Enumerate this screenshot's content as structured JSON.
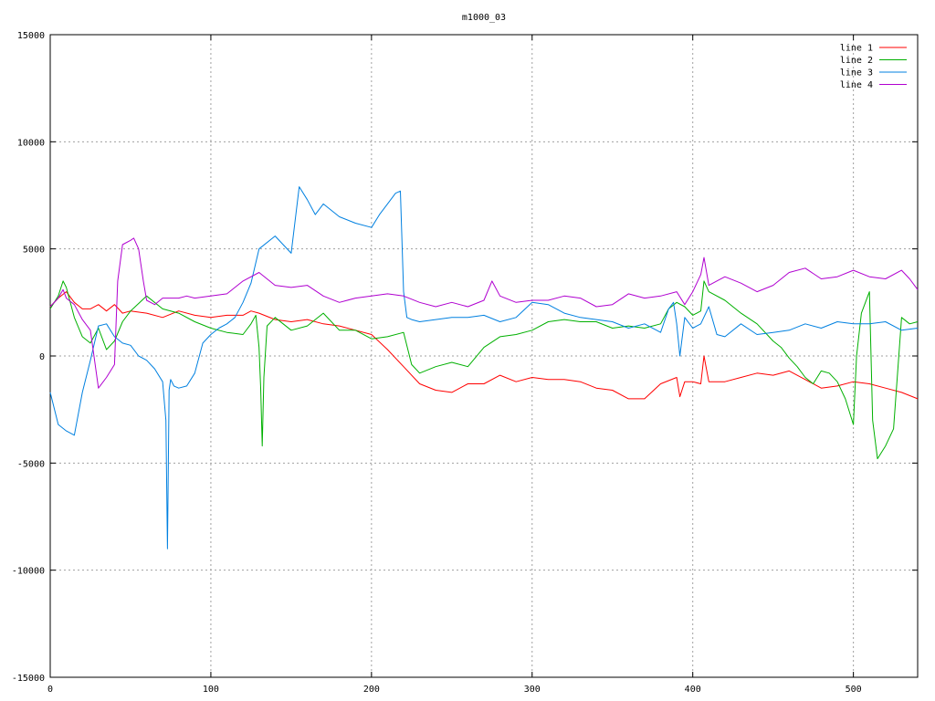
{
  "chart_data": {
    "type": "line",
    "title": "m1000_03",
    "xlabel": "",
    "ylabel": "",
    "xlim": [
      0,
      540
    ],
    "ylim": [
      -15000,
      15000
    ],
    "x_ticks": [
      0,
      100,
      200,
      300,
      400,
      500
    ],
    "y_ticks": [
      -15000,
      -10000,
      -5000,
      0,
      5000,
      10000,
      15000
    ],
    "x_tick_labels": [
      "0",
      "100",
      "200",
      "300",
      "400",
      "500"
    ],
    "y_tick_labels": [
      "-15000",
      "-10000",
      "-5000",
      "0",
      "5000",
      "10000",
      "15000"
    ],
    "grid": true,
    "legend_position": "top-right",
    "series": [
      {
        "name": "line 1",
        "color": "#ff0000",
        "x": [
          0,
          5,
          10,
          15,
          20,
          25,
          30,
          35,
          40,
          45,
          50,
          60,
          70,
          80,
          90,
          100,
          110,
          120,
          125,
          130,
          140,
          150,
          160,
          170,
          180,
          190,
          200,
          210,
          220,
          230,
          240,
          250,
          260,
          270,
          280,
          290,
          300,
          310,
          320,
          330,
          340,
          350,
          360,
          370,
          380,
          390,
          392,
          395,
          400,
          405,
          407,
          410,
          420,
          430,
          440,
          450,
          460,
          470,
          480,
          490,
          500,
          510,
          520,
          530,
          540
        ],
        "y": [
          2300,
          2700,
          3000,
          2500,
          2200,
          2200,
          2400,
          2100,
          2400,
          2000,
          2100,
          2000,
          1800,
          2100,
          1900,
          1800,
          1900,
          1900,
          2100,
          2000,
          1700,
          1600,
          1700,
          1500,
          1400,
          1200,
          1000,
          300,
          -500,
          -1300,
          -1600,
          -1700,
          -1300,
          -1300,
          -900,
          -1200,
          -1000,
          -1100,
          -1100,
          -1200,
          -1500,
          -1600,
          -2000,
          -2000,
          -1300,
          -1000,
          -1900,
          -1200,
          -1200,
          -1300,
          0,
          -1200,
          -1200,
          -1000,
          -800,
          -900,
          -700,
          -1100,
          -1500,
          -1400,
          -1200,
          -1300,
          -1500,
          -1700,
          -2000
        ]
      },
      {
        "name": "line 2",
        "color": "#00b000",
        "x": [
          0,
          5,
          8,
          10,
          15,
          20,
          25,
          30,
          35,
          40,
          45,
          50,
          60,
          70,
          80,
          90,
          100,
          110,
          120,
          125,
          128,
          130,
          131,
          132,
          133,
          135,
          140,
          150,
          160,
          170,
          180,
          190,
          200,
          210,
          220,
          225,
          230,
          240,
          250,
          260,
          270,
          280,
          290,
          300,
          310,
          320,
          330,
          340,
          350,
          360,
          370,
          380,
          385,
          390,
          395,
          400,
          405,
          407,
          410,
          420,
          430,
          440,
          450,
          455,
          460,
          465,
          470,
          475,
          480,
          485,
          490,
          495,
          500,
          502,
          505,
          510,
          512,
          515,
          520,
          525,
          530,
          535,
          540
        ],
        "y": [
          2200,
          2800,
          3500,
          3200,
          1800,
          900,
          600,
          1300,
          300,
          700,
          1600,
          2100,
          2800,
          2200,
          2000,
          1600,
          1300,
          1100,
          1000,
          1500,
          1900,
          400,
          -1500,
          -4200,
          -1000,
          1400,
          1800,
          1200,
          1400,
          2000,
          1200,
          1200,
          800,
          900,
          1100,
          -400,
          -800,
          -500,
          -300,
          -500,
          400,
          900,
          1000,
          1200,
          1600,
          1700,
          1600,
          1600,
          1300,
          1400,
          1300,
          1500,
          2200,
          2500,
          2300,
          1900,
          2100,
          3500,
          3000,
          2600,
          2000,
          1500,
          700,
          400,
          -100,
          -500,
          -1000,
          -1300,
          -700,
          -800,
          -1200,
          -2000,
          -3200,
          0,
          2000,
          3000,
          -3000,
          -4800,
          -4200,
          -3400,
          1800,
          1500,
          1600
        ]
      },
      {
        "name": "line 3",
        "color": "#0080e0",
        "x": [
          0,
          5,
          10,
          15,
          20,
          25,
          30,
          35,
          40,
          45,
          50,
          55,
          60,
          65,
          70,
          72,
          73,
          74,
          75,
          77,
          80,
          85,
          90,
          95,
          100,
          105,
          110,
          115,
          120,
          125,
          130,
          140,
          150,
          155,
          160,
          165,
          170,
          180,
          190,
          200,
          205,
          210,
          215,
          218,
          220,
          222,
          225,
          230,
          240,
          250,
          260,
          270,
          280,
          290,
          300,
          310,
          320,
          330,
          340,
          350,
          360,
          370,
          380,
          385,
          388,
          390,
          392,
          395,
          400,
          405,
          410,
          415,
          420,
          430,
          440,
          450,
          460,
          470,
          480,
          490,
          500,
          510,
          520,
          530,
          540
        ],
        "y": [
          -1700,
          -3200,
          -3500,
          -3700,
          -1700,
          -200,
          1400,
          1500,
          900,
          600,
          500,
          0,
          -200,
          -600,
          -1200,
          -3000,
          -9000,
          -1600,
          -1100,
          -1400,
          -1500,
          -1400,
          -800,
          600,
          1000,
          1300,
          1500,
          1800,
          2500,
          3400,
          5000,
          5600,
          4800,
          7900,
          7300,
          6600,
          7100,
          6500,
          6200,
          6000,
          6600,
          7100,
          7600,
          7700,
          3000,
          1800,
          1700,
          1600,
          1700,
          1800,
          1800,
          1900,
          1600,
          1800,
          2500,
          2400,
          2000,
          1800,
          1700,
          1600,
          1300,
          1500,
          1100,
          2200,
          2500,
          1500,
          0,
          1800,
          1300,
          1500,
          2300,
          1000,
          900,
          1500,
          1000,
          1100,
          1200,
          1500,
          1300,
          1600,
          1500,
          1500,
          1600,
          1200,
          1300
        ]
      },
      {
        "name": "line 4",
        "color": "#b000d0",
        "x": [
          0,
          5,
          8,
          10,
          15,
          20,
          25,
          30,
          35,
          40,
          42,
          45,
          50,
          52,
          55,
          58,
          60,
          65,
          70,
          75,
          80,
          85,
          90,
          100,
          110,
          120,
          130,
          140,
          150,
          160,
          170,
          180,
          190,
          200,
          210,
          220,
          230,
          240,
          250,
          260,
          270,
          275,
          280,
          290,
          300,
          310,
          320,
          330,
          340,
          350,
          360,
          370,
          380,
          390,
          395,
          400,
          405,
          407,
          410,
          420,
          430,
          440,
          450,
          460,
          470,
          480,
          490,
          500,
          510,
          520,
          530,
          535,
          540
        ],
        "y": [
          2300,
          2700,
          3100,
          2700,
          2400,
          1700,
          1200,
          -1500,
          -1000,
          -400,
          3500,
          5200,
          5400,
          5500,
          5000,
          3500,
          2600,
          2400,
          2700,
          2700,
          2700,
          2800,
          2700,
          2800,
          2900,
          3500,
          3900,
          3300,
          3200,
          3300,
          2800,
          2500,
          2700,
          2800,
          2900,
          2800,
          2500,
          2300,
          2500,
          2300,
          2600,
          3500,
          2800,
          2500,
          2600,
          2600,
          2800,
          2700,
          2300,
          2400,
          2900,
          2700,
          2800,
          3000,
          2400,
          3000,
          3800,
          4600,
          3300,
          3700,
          3400,
          3000,
          3300,
          3900,
          4100,
          3600,
          3700,
          4000,
          3700,
          3600,
          4000,
          3600,
          3100
        ]
      }
    ]
  }
}
